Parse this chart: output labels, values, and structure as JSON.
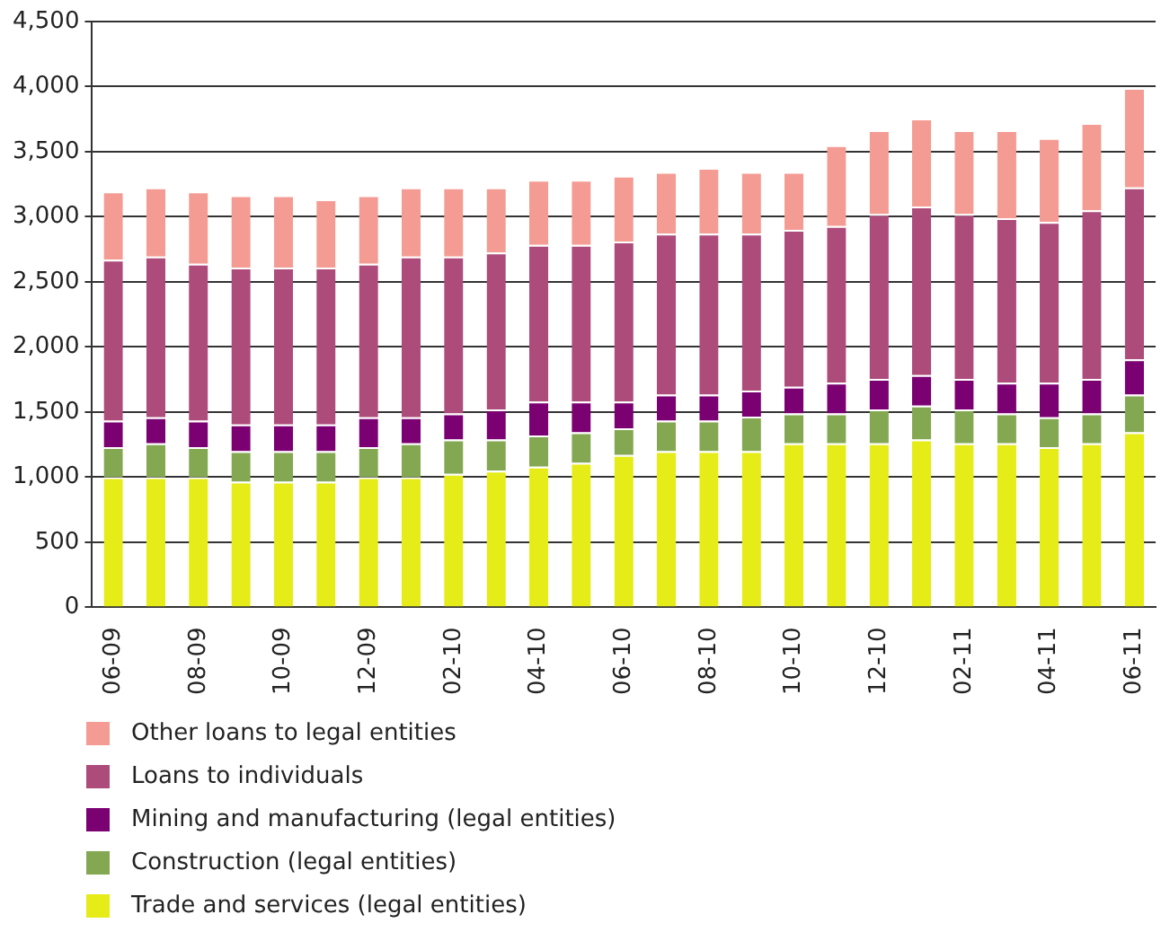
{
  "chart_data": {
    "type": "bar",
    "stacked": true,
    "categories": [
      "06-09",
      null,
      "08-09",
      null,
      "10-09",
      null,
      "12-09",
      null,
      "02-10",
      null,
      "04-10",
      null,
      "06-10",
      null,
      "08-10",
      null,
      "10-10",
      null,
      "12-10",
      null,
      "02-11",
      null,
      "04-11",
      null,
      "06-11"
    ],
    "series": [
      {
        "name": "Trade and services (legal entities)",
        "color": "#e6ec17",
        "values": [
          1000,
          1000,
          1000,
          965,
          965,
          965,
          1000,
          1000,
          1025,
          1050,
          1080,
          1110,
          1170,
          1200,
          1200,
          1200,
          1260,
          1260,
          1260,
          1290,
          1260,
          1260,
          1230,
          1260,
          1345
        ]
      },
      {
        "name": "Construction (legal entities)",
        "color": "#84a852",
        "values": [
          230,
          260,
          230,
          235,
          235,
          235,
          230,
          260,
          265,
          240,
          240,
          235,
          205,
          235,
          235,
          265,
          230,
          230,
          260,
          260,
          260,
          230,
          230,
          230,
          290
        ]
      },
      {
        "name": "Mining and manufacturing (legal entities)",
        "color": "#7b0071",
        "values": [
          205,
          200,
          205,
          205,
          205,
          205,
          230,
          200,
          200,
          230,
          260,
          235,
          205,
          200,
          200,
          200,
          205,
          235,
          235,
          235,
          235,
          235,
          265,
          265,
          270
        ]
      },
      {
        "name": "Loans to individuals",
        "color": "#ad4b7a",
        "values": [
          1235,
          1235,
          1205,
          1205,
          1205,
          1205,
          1180,
          1235,
          1205,
          1205,
          1205,
          1205,
          1230,
          1235,
          1235,
          1205,
          1205,
          1205,
          1265,
          1295,
          1265,
          1265,
          1235,
          1295,
          1320
        ]
      },
      {
        "name": "Other loans to legal entities",
        "color": "#f49c93",
        "values": [
          525,
          530,
          555,
          555,
          555,
          525,
          525,
          530,
          530,
          500,
          500,
          500,
          505,
          475,
          505,
          475,
          445,
          620,
          645,
          675,
          645,
          675,
          645,
          670,
          765
        ]
      }
    ],
    "ylim": [
      0,
      4500
    ],
    "yticks": [
      {
        "value": 0,
        "label": "0"
      },
      {
        "value": 500,
        "label": "500"
      },
      {
        "value": 1000,
        "label": "1,000"
      },
      {
        "value": 1500,
        "label": "1,500"
      },
      {
        "value": 2000,
        "label": "2,000"
      },
      {
        "value": 2500,
        "label": "2,500"
      },
      {
        "value": 3000,
        "label": "3,000"
      },
      {
        "value": 3500,
        "label": "3,500"
      },
      {
        "value": 4000,
        "label": "4,000"
      },
      {
        "value": 4500,
        "label": "4,500"
      }
    ],
    "grid": "y",
    "legend": "bottom"
  }
}
